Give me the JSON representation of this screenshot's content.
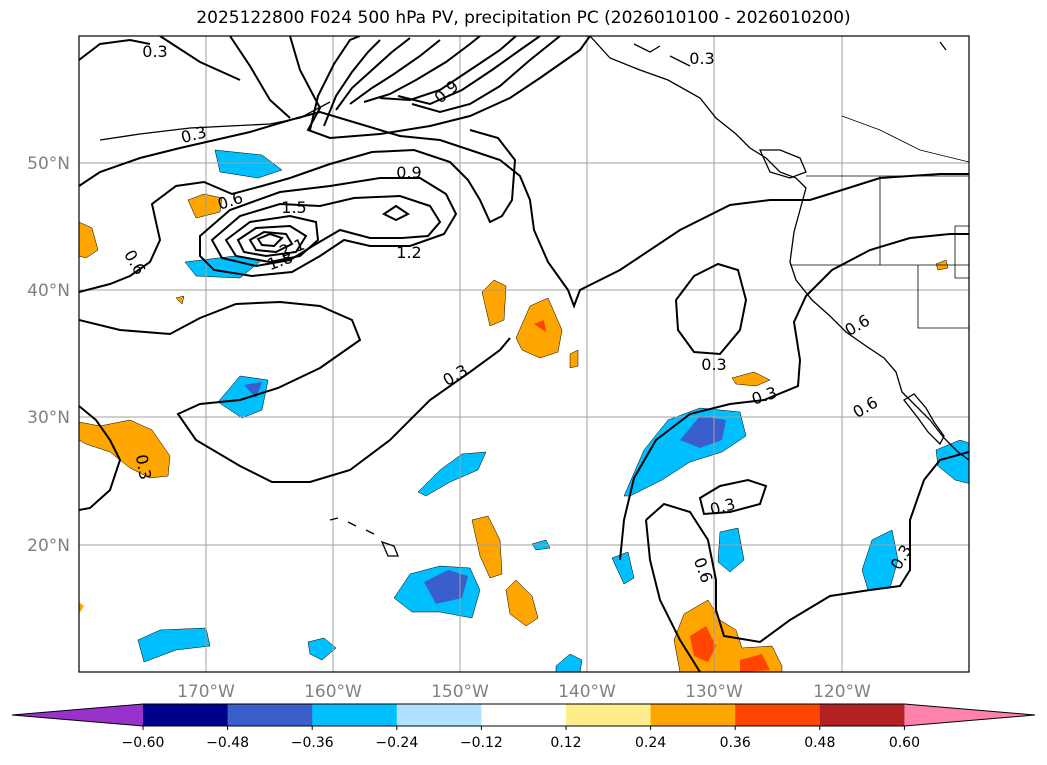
{
  "title": "2025122800 F024 500 hPa PV, precipitation PC (2026010100 - 2026010200)",
  "map": {
    "lat_labels": [
      "50°N",
      "40°N",
      "30°N",
      "20°N"
    ],
    "lon_labels": [
      "170°W",
      "160°W",
      "150°W",
      "140°W",
      "130°W",
      "120°W"
    ],
    "lat_values": [
      50,
      40,
      30,
      20
    ],
    "lon_values": [
      -170,
      -160,
      -150,
      -140,
      -130,
      -120
    ],
    "label_color": "#808080",
    "grid_color": "#a0a0a0"
  },
  "contour_labels": [
    "0.3",
    "0.3",
    "0.3",
    "0.6",
    "0.9",
    "1.5",
    "1.2",
    "1.8",
    "2.1",
    "0.6",
    "0.9",
    "0.3",
    "0.3",
    "0.3",
    "0.6",
    "0.6",
    "0.3",
    "0.6",
    "0.3",
    "0.3"
  ],
  "colorbar": {
    "ticks": [
      "−0.60",
      "−0.48",
      "−0.36",
      "−0.24",
      "−0.12",
      "0.12",
      "0.24",
      "0.36",
      "0.48",
      "0.60"
    ],
    "colors": [
      "#9932cc",
      "#00008b",
      "#3a5fcd",
      "#00bfff",
      "#b0e2ff",
      "#ffffff",
      "#ffec8b",
      "#ffa500",
      "#ff4500",
      "#b22222",
      "#ff82ab"
    ]
  }
}
